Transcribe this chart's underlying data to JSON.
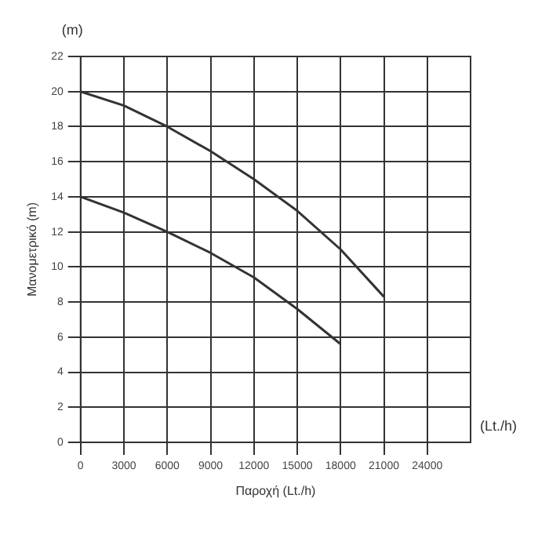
{
  "chart_data": {
    "type": "line",
    "xlabel": "Παροχή (Lt./h)",
    "ylabel": "Μανομετρικό (m)",
    "annotations": [
      "(m)",
      "(Lt./h)"
    ],
    "x": [
      0,
      3000,
      6000,
      9000,
      12000,
      15000,
      18000,
      21000
    ],
    "series": [
      {
        "color": "#333333",
        "values": [
          20,
          19.2,
          18,
          16.6,
          15,
          13.2,
          11,
          8.3
        ]
      },
      {
        "color": "#333333",
        "x": [
          0,
          3000,
          6000,
          9000,
          12000,
          15000,
          18000
        ],
        "values": [
          14,
          13.1,
          12,
          10.8,
          9.4,
          7.6,
          5.6
        ]
      }
    ],
    "xlim": [
      0,
      27000
    ],
    "xticks": [
      0,
      3000,
      6000,
      9000,
      12000,
      15000,
      18000,
      21000,
      24000
    ],
    "ylim": [
      0,
      22
    ],
    "yticks": [
      0,
      2,
      4,
      6,
      8,
      10,
      12,
      14,
      16,
      18,
      20,
      22
    ],
    "grid": true,
    "legend": false,
    "marker": "none",
    "line_style": "solid"
  }
}
